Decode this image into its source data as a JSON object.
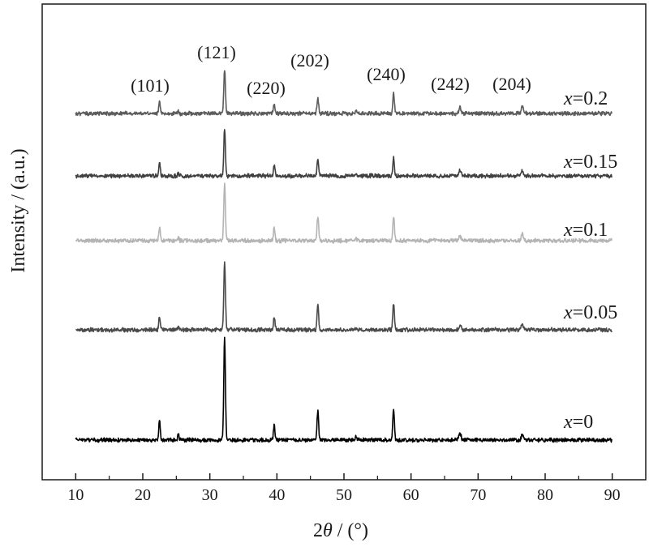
{
  "chart_data": {
    "type": "line",
    "xlabel": "2θ / (°)",
    "ylabel": "Intensity / (a.u.)",
    "xlim": [
      5,
      95
    ],
    "xticks": [
      10,
      20,
      30,
      40,
      50,
      60,
      70,
      80,
      90
    ],
    "yticks_shown": false,
    "grid": false,
    "legend": "inline labels at right end of each trace",
    "peak_labels": [
      {
        "text": "(101)",
        "x": 22.5
      },
      {
        "text": "(121)",
        "x": 32.2
      },
      {
        "text": "(220)",
        "x": 39.6
      },
      {
        "text": "(202)",
        "x": 46.1
      },
      {
        "text": "(240)",
        "x": 57.4
      },
      {
        "text": "(242)",
        "x": 67.3
      },
      {
        "text": "(204)",
        "x": 76.6
      }
    ],
    "peaks_2theta": [
      22.5,
      25.3,
      32.2,
      39.6,
      46.1,
      51.8,
      57.4,
      67.3,
      76.6
    ],
    "series": [
      {
        "name": "x=0",
        "var": "x",
        "value": "=0",
        "color": "#000000",
        "relative_peak_heights": [
          0.2,
          0.05,
          1.0,
          0.15,
          0.28,
          0.03,
          0.3,
          0.07,
          0.05
        ]
      },
      {
        "name": "x=0.05",
        "var": "x",
        "value": "=0.05",
        "color": "#4a4a4a",
        "relative_peak_heights": [
          0.2,
          0.05,
          1.0,
          0.19,
          0.38,
          0.03,
          0.38,
          0.07,
          0.07
        ]
      },
      {
        "name": "x=0.1",
        "var": "x",
        "value": "=0.1",
        "color": "#b4b4b4",
        "relative_peak_heights": [
          0.24,
          0.05,
          1.0,
          0.22,
          0.42,
          0.05,
          0.42,
          0.08,
          0.11
        ]
      },
      {
        "name": "x=0.15",
        "var": "x",
        "value": "=0.15",
        "color": "#404040",
        "relative_peak_heights": [
          0.32,
          0.06,
          1.0,
          0.22,
          0.38,
          0.05,
          0.38,
          0.11,
          0.11
        ]
      },
      {
        "name": "x=0.2",
        "var": "x",
        "value": "=0.2",
        "color": "#5c5c5c",
        "relative_peak_heights": [
          0.25,
          0.04,
          1.0,
          0.23,
          0.35,
          0.05,
          0.45,
          0.14,
          0.18
        ]
      }
    ]
  }
}
